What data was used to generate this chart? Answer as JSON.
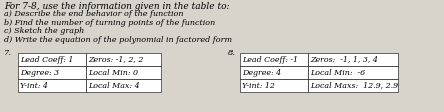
{
  "title_text": "For 7-8, use the information given in the table to:",
  "instructions": [
    "a) Describe the end behavior of the function",
    "b) Find the number of turning points of the function",
    "c) Sketch the graph",
    "d) Write the equation of the polynomial in factored form"
  ],
  "label7": "7.",
  "label8": "8.",
  "table7": {
    "rows": [
      [
        "Lead Coeff: 1",
        "Zeros: -1, 2, 2"
      ],
      [
        "Degree: 3",
        "Local Min: 0"
      ],
      [
        "Y-int: 4",
        "Local Max: 4"
      ]
    ]
  },
  "table8": {
    "rows": [
      [
        "Lead Coeff: -1",
        "Zeros:  -1, 1, 3, 4"
      ],
      [
        "Degree: 4",
        "Local Min:  -6"
      ],
      [
        "Y-int: 12",
        "Local Maxs:  12.9, 2.9"
      ]
    ]
  },
  "bg_color": "#d8d4cc",
  "font_size": 6.0,
  "title_font_size": 6.5,
  "instr_font_size": 5.8
}
